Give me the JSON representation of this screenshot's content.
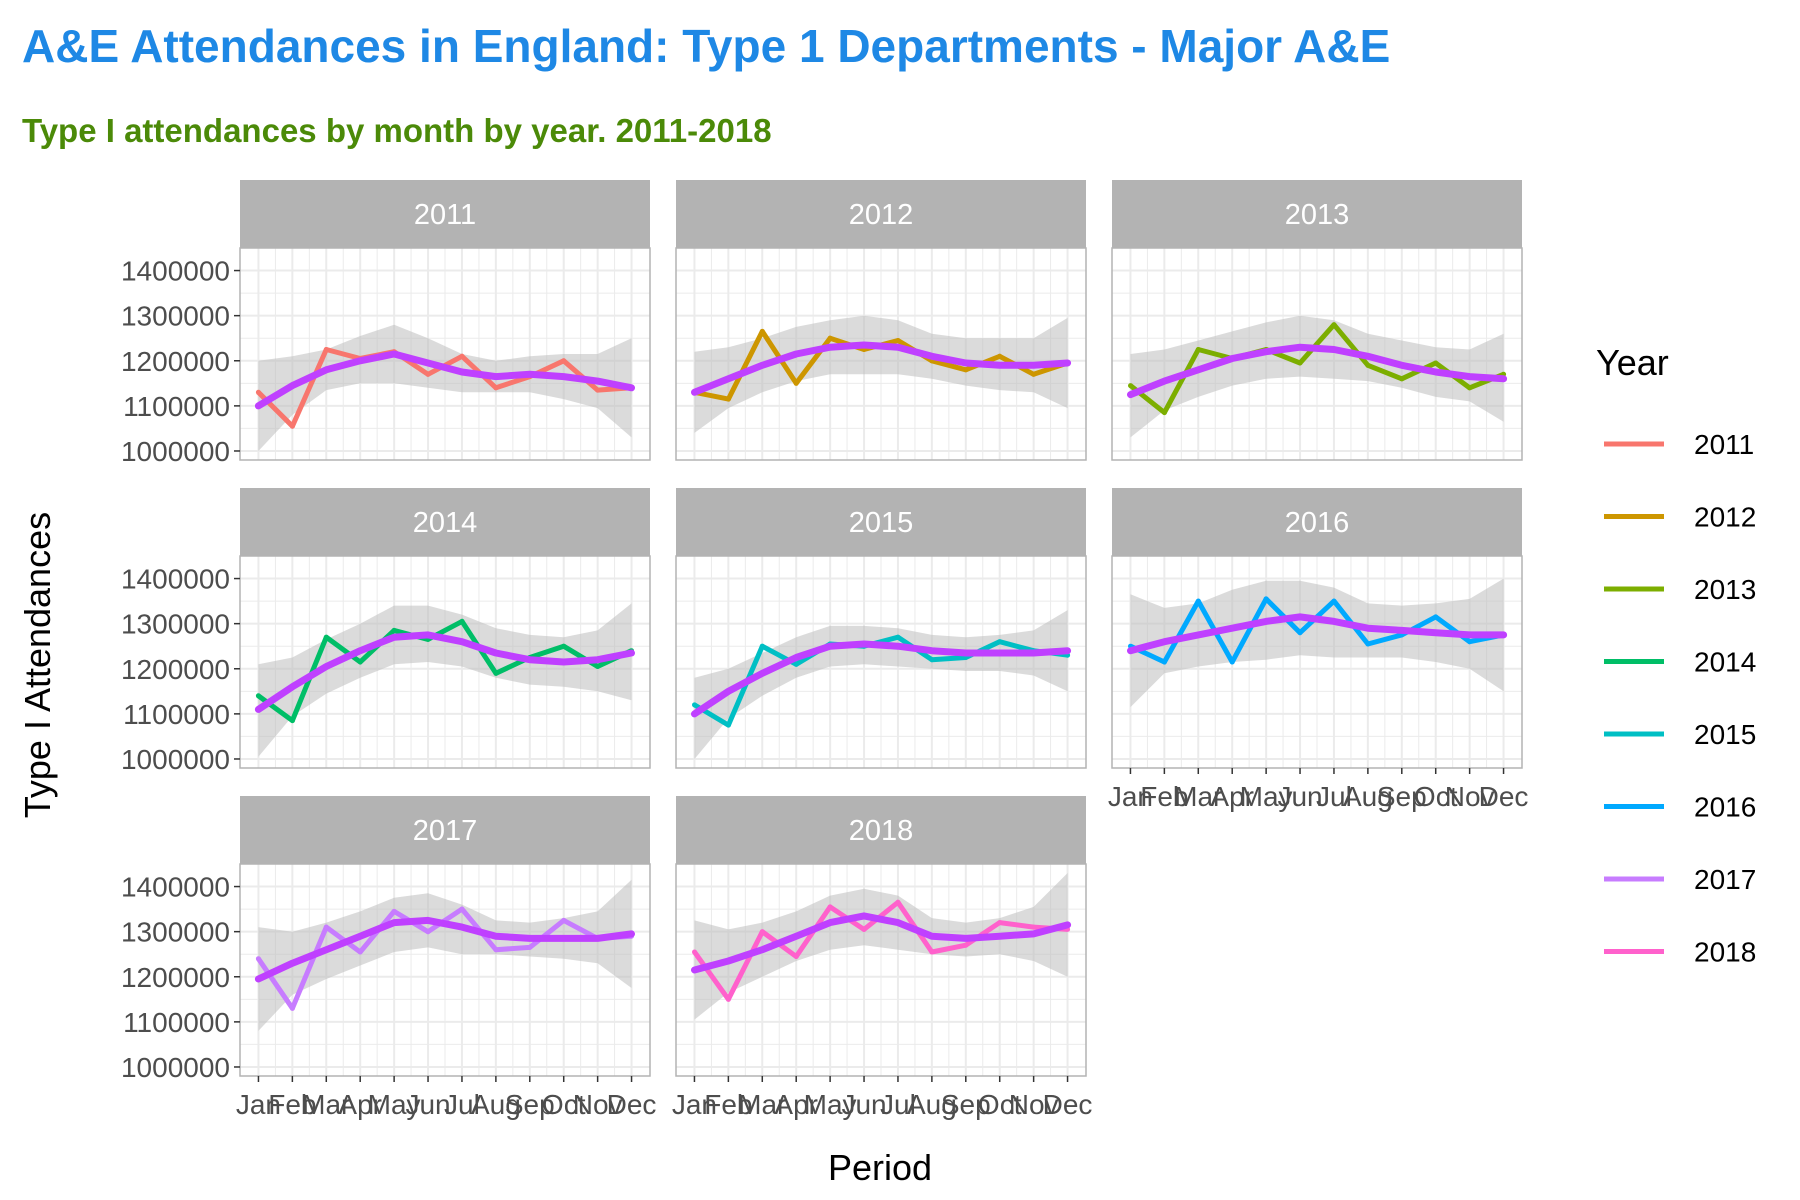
{
  "colors": {
    "title": "#1e88e5",
    "subtitle": "#4b8a08",
    "smooth": "#bf40ff",
    "ribbon": "#bebebe",
    "strip": "#b3b3b3",
    "grid": "#ebebeb",
    "panel_border": "#b3b3b3"
  },
  "chart_data": {
    "type": "line",
    "title": "A&E Attendances in England: Type 1 Departments - Major A&E",
    "subtitle": "Type I attendances by month by year. 2011-2018",
    "xlabel": "Period",
    "ylabel": "Type I Attendances",
    "x_tick_labels": [
      "Jan",
      "Feb",
      "Mar",
      "Apr",
      "May",
      "Jun",
      "Jul",
      "Aug",
      "Sep",
      "Oct",
      "Nov",
      "Dec"
    ],
    "y_tick_labels": [
      "1000000",
      "1100000",
      "1200000",
      "1300000",
      "1400000"
    ],
    "y_ticks": [
      1000000,
      1100000,
      1200000,
      1300000,
      1400000
    ],
    "ylim": [
      980000,
      1450000
    ],
    "grid": true,
    "facet_by": "Year",
    "legend": {
      "title": "Year",
      "position": "right"
    },
    "series": [
      {
        "name": "2011",
        "color": "#f8766d",
        "values": [
          1130000,
          1055000,
          1225000,
          1205000,
          1220000,
          1170000,
          1210000,
          1140000,
          1165000,
          1200000,
          1135000,
          1140000
        ],
        "smooth": [
          1100000,
          1145000,
          1180000,
          1200000,
          1215000,
          1195000,
          1175000,
          1165000,
          1170000,
          1165000,
          1155000,
          1140000
        ],
        "band_upper": [
          1200000,
          1210000,
          1225000,
          1255000,
          1280000,
          1250000,
          1215000,
          1200000,
          1210000,
          1215000,
          1215000,
          1250000
        ],
        "band_lower": [
          1000000,
          1080000,
          1135000,
          1150000,
          1150000,
          1140000,
          1130000,
          1130000,
          1130000,
          1115000,
          1095000,
          1030000
        ]
      },
      {
        "name": "2012",
        "color": "#cd9600",
        "values": [
          1130000,
          1115000,
          1265000,
          1150000,
          1250000,
          1225000,
          1245000,
          1200000,
          1180000,
          1210000,
          1170000,
          1195000
        ],
        "smooth": [
          1130000,
          1160000,
          1190000,
          1215000,
          1230000,
          1235000,
          1230000,
          1210000,
          1195000,
          1190000,
          1190000,
          1195000
        ],
        "band_upper": [
          1220000,
          1230000,
          1250000,
          1275000,
          1290000,
          1300000,
          1290000,
          1260000,
          1250000,
          1250000,
          1250000,
          1295000
        ],
        "band_lower": [
          1040000,
          1095000,
          1130000,
          1155000,
          1170000,
          1170000,
          1170000,
          1160000,
          1145000,
          1135000,
          1130000,
          1095000
        ]
      },
      {
        "name": "2013",
        "color": "#7cae00",
        "values": [
          1145000,
          1085000,
          1225000,
          1205000,
          1225000,
          1195000,
          1280000,
          1190000,
          1160000,
          1195000,
          1140000,
          1170000
        ],
        "smooth": [
          1125000,
          1155000,
          1180000,
          1205000,
          1220000,
          1230000,
          1225000,
          1210000,
          1190000,
          1175000,
          1165000,
          1160000
        ],
        "band_upper": [
          1215000,
          1225000,
          1245000,
          1265000,
          1285000,
          1300000,
          1290000,
          1260000,
          1245000,
          1230000,
          1225000,
          1260000
        ],
        "band_lower": [
          1030000,
          1090000,
          1120000,
          1145000,
          1160000,
          1165000,
          1160000,
          1155000,
          1140000,
          1120000,
          1110000,
          1065000
        ]
      },
      {
        "name": "2014",
        "color": "#00be67",
        "values": [
          1140000,
          1085000,
          1270000,
          1215000,
          1285000,
          1265000,
          1305000,
          1190000,
          1225000,
          1250000,
          1205000,
          1240000
        ],
        "smooth": [
          1110000,
          1160000,
          1205000,
          1240000,
          1270000,
          1275000,
          1260000,
          1235000,
          1220000,
          1215000,
          1220000,
          1235000
        ],
        "band_upper": [
          1210000,
          1225000,
          1265000,
          1300000,
          1340000,
          1340000,
          1320000,
          1290000,
          1275000,
          1270000,
          1285000,
          1345000
        ],
        "band_lower": [
          1005000,
          1095000,
          1145000,
          1180000,
          1210000,
          1215000,
          1205000,
          1180000,
          1165000,
          1160000,
          1150000,
          1130000
        ]
      },
      {
        "name": "2015",
        "color": "#00bfc4",
        "values": [
          1120000,
          1075000,
          1250000,
          1210000,
          1255000,
          1250000,
          1270000,
          1220000,
          1225000,
          1260000,
          1240000,
          1230000
        ],
        "smooth": [
          1100000,
          1150000,
          1190000,
          1225000,
          1250000,
          1255000,
          1250000,
          1240000,
          1235000,
          1235000,
          1235000,
          1240000
        ],
        "band_upper": [
          1180000,
          1200000,
          1235000,
          1270000,
          1295000,
          1295000,
          1290000,
          1275000,
          1270000,
          1275000,
          1285000,
          1330000
        ],
        "band_lower": [
          1000000,
          1090000,
          1140000,
          1180000,
          1205000,
          1210000,
          1205000,
          1200000,
          1195000,
          1195000,
          1185000,
          1150000
        ]
      },
      {
        "name": "2016",
        "color": "#00a9ff",
        "values": [
          1250000,
          1215000,
          1350000,
          1215000,
          1355000,
          1280000,
          1350000,
          1255000,
          1275000,
          1315000,
          1260000,
          1275000
        ],
        "smooth": [
          1240000,
          1260000,
          1275000,
          1290000,
          1305000,
          1315000,
          1305000,
          1290000,
          1285000,
          1280000,
          1275000,
          1275000
        ],
        "band_upper": [
          1365000,
          1335000,
          1345000,
          1375000,
          1395000,
          1395000,
          1380000,
          1345000,
          1340000,
          1345000,
          1355000,
          1400000
        ],
        "band_lower": [
          1115000,
          1190000,
          1205000,
          1215000,
          1220000,
          1230000,
          1225000,
          1225000,
          1225000,
          1215000,
          1200000,
          1150000
        ]
      },
      {
        "name": "2017",
        "color": "#c77cff",
        "values": [
          1240000,
          1130000,
          1310000,
          1255000,
          1345000,
          1300000,
          1350000,
          1260000,
          1265000,
          1325000,
          1285000,
          1290000
        ],
        "smooth": [
          1195000,
          1230000,
          1260000,
          1290000,
          1320000,
          1325000,
          1310000,
          1290000,
          1285000,
          1285000,
          1285000,
          1295000
        ],
        "band_upper": [
          1310000,
          1300000,
          1320000,
          1345000,
          1375000,
          1385000,
          1360000,
          1325000,
          1320000,
          1330000,
          1345000,
          1415000
        ],
        "band_lower": [
          1080000,
          1160000,
          1195000,
          1225000,
          1255000,
          1265000,
          1250000,
          1250000,
          1245000,
          1240000,
          1230000,
          1175000
        ]
      },
      {
        "name": "2018",
        "color": "#ff61cc",
        "values": [
          1255000,
          1150000,
          1300000,
          1245000,
          1355000,
          1305000,
          1365000,
          1255000,
          1270000,
          1320000,
          1310000,
          1305000
        ],
        "smooth": [
          1215000,
          1235000,
          1260000,
          1290000,
          1320000,
          1335000,
          1320000,
          1290000,
          1285000,
          1290000,
          1295000,
          1315000
        ],
        "band_upper": [
          1325000,
          1305000,
          1320000,
          1345000,
          1380000,
          1395000,
          1380000,
          1330000,
          1320000,
          1330000,
          1355000,
          1430000
        ],
        "band_lower": [
          1105000,
          1165000,
          1200000,
          1235000,
          1260000,
          1270000,
          1260000,
          1250000,
          1245000,
          1250000,
          1235000,
          1200000
        ]
      }
    ]
  }
}
